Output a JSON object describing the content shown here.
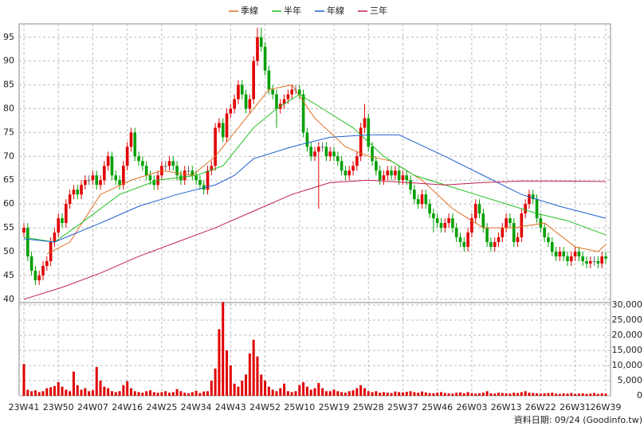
{
  "chart_data": {
    "type": "candlestick",
    "legend_position": "top",
    "grid": true,
    "up_color": "#e00000",
    "down_color": "#00a000",
    "volume_color": "#e00000",
    "source": "資料日期: 09/24 (Goodinfo.tw)",
    "categories": [
      "23W41",
      null,
      null,
      null,
      null,
      null,
      null,
      null,
      null,
      "23W50",
      null,
      null,
      null,
      null,
      null,
      null,
      null,
      null,
      "24W07",
      null,
      null,
      null,
      null,
      null,
      null,
      null,
      null,
      "24W16",
      null,
      null,
      null,
      null,
      null,
      null,
      null,
      null,
      "24W25",
      null,
      null,
      null,
      null,
      null,
      null,
      null,
      null,
      "24W34",
      null,
      null,
      null,
      null,
      null,
      null,
      null,
      null,
      "24W43",
      null,
      null,
      null,
      null,
      null,
      null,
      null,
      null,
      "24W52",
      null,
      null,
      null,
      null,
      null,
      null,
      null,
      null,
      "25W10",
      null,
      null,
      null,
      null,
      null,
      null,
      null,
      null,
      "25W19",
      null,
      null,
      null,
      null,
      null,
      null,
      null,
      null,
      "25W28",
      null,
      null,
      null,
      null,
      null,
      null,
      null,
      null,
      "25W37",
      null,
      null,
      null,
      null,
      null,
      null,
      null,
      null,
      "25W46",
      null,
      null,
      null,
      null,
      null,
      null,
      null,
      null,
      "26W03",
      null,
      null,
      null,
      null,
      null,
      null,
      null,
      null,
      "26W13",
      null,
      null,
      null,
      null,
      null,
      null,
      null,
      null,
      "26W22",
      null,
      null,
      null,
      null,
      null,
      null,
      null,
      null,
      "26W31",
      null,
      null,
      null,
      null,
      null,
      null,
      null,
      "26W39"
    ],
    "open": [
      54,
      55,
      49,
      46,
      44,
      45,
      47,
      48,
      52,
      54,
      57,
      56,
      60,
      62,
      63,
      62,
      64,
      65,
      65,
      66,
      64,
      65,
      68,
      70,
      66,
      65,
      64,
      68,
      72,
      75,
      70,
      69,
      68,
      66,
      65,
      64,
      66,
      68,
      68,
      69,
      68,
      66,
      65,
      67,
      67,
      66,
      65,
      64,
      63,
      67,
      68,
      76,
      77,
      74,
      79,
      80,
      82,
      85,
      83,
      80,
      82,
      90,
      95,
      93,
      88,
      84,
      83,
      80,
      81,
      82,
      83,
      84,
      84,
      83,
      75,
      72,
      70,
      71,
      72,
      72,
      70,
      71,
      70,
      69,
      67,
      66,
      67,
      68,
      70,
      76,
      78,
      72,
      69,
      67,
      65,
      66,
      67,
      66,
      67,
      65,
      66,
      65,
      63,
      61,
      60,
      62,
      60,
      58,
      57,
      56,
      55,
      56,
      57,
      55,
      53,
      52,
      51,
      54,
      57,
      60,
      58,
      55,
      52,
      51,
      52,
      53,
      55,
      57,
      56,
      52,
      53,
      58,
      60,
      62,
      61,
      57,
      55,
      53,
      52,
      50,
      49,
      50,
      49,
      48,
      49,
      50,
      49,
      48,
      47.5,
      48,
      48,
      47.5,
      49
    ],
    "high": [
      56,
      56,
      50,
      47,
      46,
      48,
      49,
      53,
      55,
      58,
      58,
      61,
      63,
      64,
      64,
      65,
      66,
      66,
      67,
      67,
      66,
      69,
      71,
      71,
      67,
      66,
      69,
      73,
      76,
      76,
      71,
      70,
      69,
      67,
      66,
      67,
      69,
      69,
      70,
      70,
      69,
      67,
      68,
      68,
      68,
      67,
      66,
      65,
      68,
      69,
      77,
      78,
      78,
      80,
      81,
      83,
      86,
      86,
      84,
      83,
      91,
      97,
      97,
      94,
      89,
      85,
      84,
      82,
      83,
      84,
      85,
      85,
      85,
      84,
      76,
      73,
      72,
      73,
      73,
      73,
      72,
      72,
      71,
      70,
      68,
      68,
      69,
      71,
      77,
      81,
      79,
      73,
      70,
      68,
      67,
      68,
      68,
      68,
      68,
      67,
      67,
      66,
      64,
      62,
      63,
      63,
      61,
      59,
      58,
      57,
      57,
      58,
      58,
      56,
      54,
      53,
      55,
      58,
      61,
      61,
      59,
      56,
      53,
      53,
      54,
      56,
      58,
      58,
      57,
      54,
      59,
      61,
      63,
      63,
      62,
      58,
      56,
      54,
      53,
      51,
      51,
      51,
      50,
      50,
      51,
      51,
      50,
      49,
      49,
      49,
      49,
      50,
      50
    ],
    "low": [
      53,
      48,
      45,
      43,
      43,
      44,
      46,
      47,
      51,
      53,
      55,
      55,
      59,
      61,
      61,
      61,
      63,
      64,
      64,
      63,
      63,
      64,
      67,
      65,
      64,
      63,
      63,
      67,
      71,
      69,
      68,
      67,
      65,
      64,
      63,
      63,
      65,
      67,
      67,
      67,
      65,
      64,
      64,
      66,
      65,
      64,
      63,
      62,
      62,
      66,
      67,
      75,
      73,
      73,
      78,
      79,
      81,
      82,
      79,
      79,
      81,
      89,
      92,
      87,
      83,
      82,
      76,
      79,
      80,
      81,
      82,
      83,
      82,
      74,
      71,
      69,
      69,
      59,
      71,
      69,
      69,
      69,
      68,
      66,
      65,
      65,
      66,
      67,
      69,
      75,
      71,
      68,
      66,
      64,
      64,
      65,
      65,
      65,
      64,
      64,
      64,
      62,
      60,
      59,
      59,
      59,
      57,
      54,
      55,
      54,
      54,
      55,
      54,
      52,
      51,
      50,
      50,
      53,
      56,
      57,
      54,
      51,
      50,
      50,
      51,
      52,
      54,
      55,
      51,
      51,
      52,
      57,
      59,
      60,
      56,
      54,
      52,
      51,
      49,
      48,
      48,
      48,
      47,
      47,
      48,
      48,
      47,
      46.5,
      46.5,
      47,
      46.5,
      46.5,
      47.5
    ],
    "close": [
      55,
      49,
      46,
      44,
      45,
      47,
      48,
      52,
      54,
      57,
      56,
      60,
      62,
      63,
      62,
      64,
      65,
      65,
      66,
      64,
      65,
      68,
      70,
      66,
      65,
      64,
      68,
      72,
      75,
      70,
      69,
      68,
      66,
      65,
      64,
      66,
      68,
      68,
      69,
      68,
      66,
      65,
      67,
      67,
      66,
      65,
      64,
      63,
      67,
      68,
      76,
      77,
      74,
      79,
      80,
      82,
      85,
      83,
      80,
      82,
      90,
      95,
      93,
      88,
      84,
      83,
      80,
      81,
      82,
      83,
      84,
      84,
      83,
      75,
      72,
      70,
      71,
      72,
      72,
      70,
      71,
      70,
      69,
      67,
      66,
      67,
      68,
      70,
      76,
      78,
      72,
      69,
      67,
      65,
      66,
      67,
      66,
      67,
      65,
      66,
      65,
      63,
      61,
      60,
      62,
      60,
      58,
      57,
      56,
      55,
      56,
      57,
      55,
      53,
      52,
      51,
      54,
      57,
      60,
      58,
      55,
      52,
      51,
      52,
      53,
      55,
      57,
      56,
      52,
      53,
      58,
      60,
      62,
      61,
      57,
      55,
      53,
      52,
      50,
      49,
      50,
      49,
      48,
      49,
      50,
      49,
      48,
      47.5,
      48,
      48,
      47.5,
      49,
      48.5
    ],
    "volume": [
      10500,
      2000,
      1500,
      1800,
      1200,
      1500,
      2500,
      2800,
      3200,
      4500,
      3000,
      2000,
      1500,
      8000,
      3500,
      2000,
      2500,
      1500,
      1800,
      9500,
      5000,
      3000,
      2500,
      1500,
      1200,
      1500,
      3500,
      4800,
      2500,
      1500,
      1200,
      1000,
      1500,
      1800,
      1200,
      1000,
      1200,
      1500,
      1000,
      1200,
      2200,
      1500,
      1000,
      800,
      1200,
      1600,
      900,
      1400,
      1500,
      5000,
      9000,
      22000,
      31000,
      15000,
      10000,
      4000,
      3000,
      5000,
      7000,
      14000,
      18500,
      13000,
      7000,
      5000,
      3000,
      2000,
      1500,
      2500,
      4000,
      1500,
      1200,
      1500,
      3500,
      4500,
      3000,
      2000,
      2500,
      4200,
      2500,
      1500,
      1500,
      2000,
      1500,
      1200,
      1000,
      1500,
      1800,
      2500,
      3500,
      2500,
      1500,
      1200,
      1500,
      1000,
      1200,
      1000,
      900,
      1400,
      1200,
      1100,
      1300,
      1500,
      1200,
      1000,
      1400,
      1100,
      900,
      800,
      1000,
      1200,
      900,
      800,
      700,
      1000,
      1100,
      800,
      1200,
      900,
      700,
      800,
      1000,
      1500,
      800,
      700,
      1000,
      900,
      800,
      700,
      1000,
      900,
      1200,
      1500,
      1000,
      900,
      800,
      700,
      800,
      900,
      1000,
      700,
      600,
      800,
      700,
      900,
      600,
      700,
      800,
      600,
      700,
      900,
      600,
      800,
      700
    ],
    "series": [
      {
        "name": "季線",
        "color": "#e07020",
        "x": [
          6,
          12,
          20,
          28,
          36,
          44,
          50,
          58,
          64,
          70,
          76,
          84,
          90,
          96,
          104,
          112,
          120,
          128,
          136,
          144,
          150,
          152
        ],
        "values": [
          49.5,
          52,
          62,
          65,
          67,
          66,
          70,
          78,
          84,
          85,
          78,
          72,
          70,
          69,
          65,
          59,
          55,
          55,
          56,
          51,
          50,
          51.5
        ]
      },
      {
        "name": "半年",
        "color": "#22c022",
        "x": [
          0,
          8,
          15,
          25,
          35,
          45,
          52,
          60,
          66,
          72,
          78,
          86,
          94,
          102,
          110,
          118,
          126,
          134,
          142,
          152
        ],
        "values": [
          53,
          52,
          56,
          62,
          65,
          66,
          68,
          76,
          80,
          83,
          80,
          76,
          70,
          66,
          64,
          62,
          60,
          58,
          56.5,
          53.5
        ]
      },
      {
        "name": "年線",
        "color": "#2060d0",
        "x": [
          0,
          8,
          20,
          30,
          40,
          50,
          55,
          60,
          70,
          80,
          90,
          98,
          110,
          120,
          130,
          140,
          152
        ],
        "values": [
          52.7,
          52,
          56,
          59.5,
          62,
          64,
          66,
          69.5,
          72,
          74,
          74.5,
          74.5,
          70,
          66,
          62,
          59.5,
          57
        ]
      },
      {
        "name": "三年",
        "color": "#c02050",
        "x": [
          0,
          10,
          20,
          30,
          40,
          50,
          60,
          70,
          80,
          90,
          100,
          110,
          120,
          130,
          140,
          152
        ],
        "values": [
          40,
          42.5,
          45.5,
          49,
          52,
          55,
          58.5,
          62,
          64.5,
          65,
          64.5,
          64,
          64.5,
          64.8,
          64.8,
          64.7
        ]
      }
    ],
    "ylim": [
      39.3,
      97.8
    ],
    "yticks": [
      40,
      45,
      50,
      55,
      60,
      65,
      70,
      75,
      80,
      85,
      90,
      95
    ],
    "y2lim": [
      0,
      30800
    ],
    "y2ticks": [
      0,
      {
        "value": 5000,
        "label": "5,000"
      },
      {
        "value": 10000,
        "label": "10,000"
      },
      {
        "value": 15000,
        "label": "15,000"
      },
      {
        "value": 20000,
        "label": "20,000"
      },
      {
        "value": 25000,
        "label": "25,000"
      },
      {
        "value": 30000,
        "label": "30,000"
      }
    ]
  }
}
